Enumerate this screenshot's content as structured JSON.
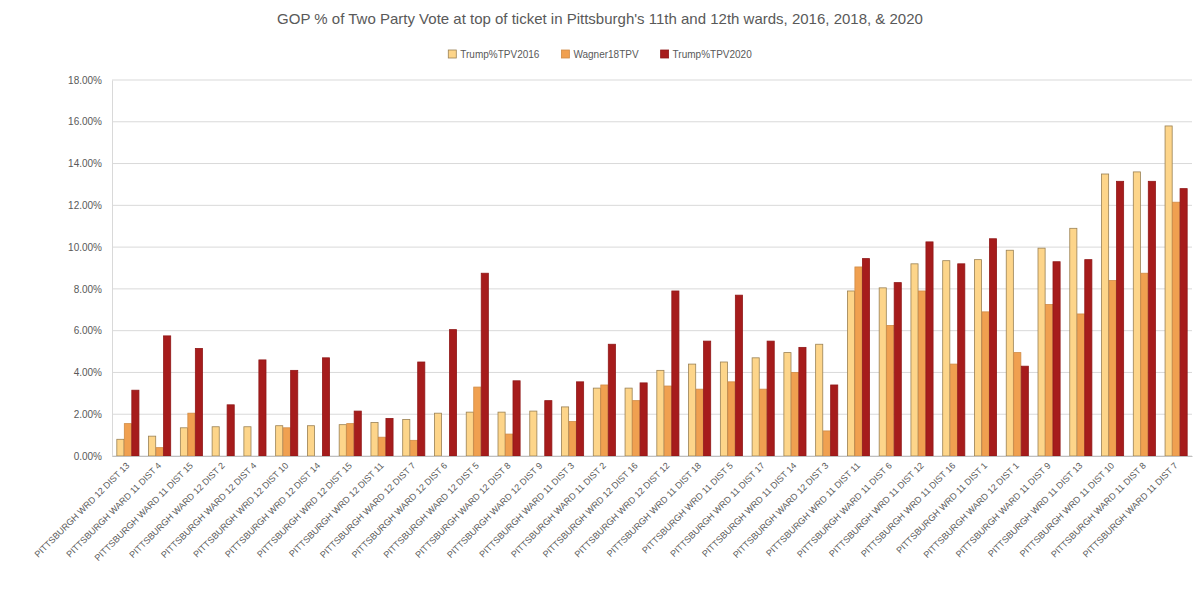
{
  "chart_data": {
    "type": "bar",
    "title": "GOP % of Two Party Vote at top of ticket in Pittsburgh's 11th and 12th wards, 2016, 2018, & 2020",
    "categories": [
      "PITTSBURGH WRD 12 DIST 13",
      "PITTSBURGH WARD 11 DIST 4",
      "PITTSBURGH WARD 11 DIST 15",
      "PITTSBURGH WARD 12 DIST 2",
      "PITTSBURGH WARD 12 DIST 4",
      "PITTSBURGH WRD 12 DIST 10",
      "PITTSBURGH WRD 12 DIST 14",
      "PITTSBURGH WRD 12 DIST 15",
      "PITTSBURGH WRD 12 DIST 11",
      "PITTSBURGH WARD 12 DIST 7",
      "PITTSBURGH WARD 12 DIST 6",
      "PITTSBURGH WARD 12 DIST 5",
      "PITTSBURGH WARD 12 DIST 8",
      "PITTSBURGH WARD 12 DIST 9",
      "PITTSBURGH WARD 11 DIST 3",
      "PITTSBURGH WARD 11 DIST 2",
      "PITTSBURGH WRD 12 DIST 16",
      "PITTSBURGH WRD 12 DIST 12",
      "PITTSBURGH WRD 11 DIST 18",
      "PITTSBURGH WRD 11 DIST 5",
      "PITTSBURGH WRD 11 DIST 17",
      "PITTSBURGH WRD 11 DIST 14",
      "PITTSBURGH WARD 12 DIST 3",
      "PITTSBURGH WRD 11 DIST 11",
      "PITTSBURGH WARD 11 DIST 6",
      "PITTSBURGH WRD 11 DIST 12",
      "PITTSBURGH WRD 11 DIST 16",
      "PITTSBURGH WRD 11 DIST 1",
      "PITTSBURGH WARD 12 DIST 1",
      "PITTSBURGH WARD 11 DIST 9",
      "PITTSBURGH WRD 11 DIST 13",
      "PITTSBURGH WRD 11 DIST 10",
      "PITTSBURGH WARD 11 DIST 8",
      "PITTSBURGH WARD 11 DIST 7"
    ],
    "series": [
      {
        "name": "Trump%TPV2016",
        "color": "#fdd58a",
        "values": [
          0.8,
          0.95,
          1.35,
          1.4,
          1.4,
          1.45,
          1.45,
          1.5,
          1.6,
          1.75,
          2.05,
          2.1,
          2.1,
          2.15,
          2.35,
          3.25,
          3.25,
          4.1,
          4.4,
          4.5,
          4.7,
          4.95,
          5.35,
          7.9,
          8.05,
          9.2,
          9.35,
          9.4,
          9.85,
          9.95,
          10.9,
          13.5,
          13.6,
          15.8
        ]
      },
      {
        "name": "Wagner18TPV",
        "color": "#f0a050",
        "values": [
          1.55,
          0.4,
          2.05,
          null,
          null,
          1.35,
          null,
          1.55,
          0.9,
          0.75,
          null,
          3.3,
          1.05,
          null,
          1.65,
          3.4,
          2.65,
          3.35,
          3.2,
          3.55,
          3.2,
          4.0,
          1.2,
          9.05,
          6.25,
          7.9,
          4.4,
          6.9,
          4.95,
          7.25,
          6.8,
          8.4,
          8.75,
          12.15
        ]
      },
      {
        "name": "Trump%TPV2020",
        "color": "#a61c1c",
        "values": [
          3.15,
          5.75,
          5.15,
          2.45,
          4.6,
          4.1,
          4.7,
          2.15,
          1.8,
          4.5,
          6.05,
          8.75,
          3.6,
          2.65,
          3.55,
          5.35,
          3.5,
          7.9,
          5.5,
          7.7,
          5.5,
          5.2,
          3.4,
          9.45,
          8.3,
          10.25,
          9.2,
          10.4,
          4.3,
          9.3,
          9.4,
          13.15,
          13.15,
          12.8
        ]
      }
    ],
    "ylim": [
      0,
      18
    ],
    "yticks": [
      {
        "value": 0,
        "label": "0.00%"
      },
      {
        "value": 2,
        "label": "2.00%"
      },
      {
        "value": 4,
        "label": "4.00%"
      },
      {
        "value": 6,
        "label": "6.00%"
      },
      {
        "value": 8,
        "label": "8.00%"
      },
      {
        "value": 10,
        "label": "10.00%"
      },
      {
        "value": 12,
        "label": "12.00%"
      },
      {
        "value": 14,
        "label": "14.00%"
      },
      {
        "value": 16,
        "label": "16.00%"
      },
      {
        "value": 18,
        "label": "18.00%"
      }
    ],
    "grid": true,
    "legend": "top"
  }
}
